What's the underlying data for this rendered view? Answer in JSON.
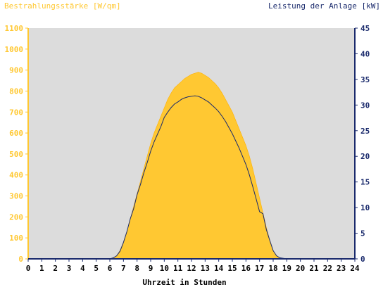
{
  "chart_data": {
    "type": "area",
    "left_axis_label": "Bestrahlungsstärke [W/qm]",
    "right_axis_label": "Leistung der Anlage [kW]",
    "xlabel": "Uhrzeit in Stunden",
    "xlim": [
      0,
      24
    ],
    "x_ticks": [
      0,
      1,
      2,
      3,
      4,
      5,
      6,
      7,
      8,
      9,
      10,
      11,
      12,
      13,
      14,
      15,
      16,
      17,
      18,
      19,
      20,
      21,
      22,
      23,
      24
    ],
    "ylim_left": [
      0,
      1100
    ],
    "y_ticks_left": [
      0,
      100,
      200,
      300,
      400,
      500,
      600,
      700,
      800,
      900,
      1000,
      1100
    ],
    "ylim_right": [
      0,
      45
    ],
    "y_ticks_right": [
      0,
      5,
      10,
      15,
      20,
      25,
      30,
      35,
      40,
      45
    ],
    "grid": false,
    "colors": {
      "irradiance": "#ffc832",
      "power": "#1a2a6c",
      "plot_background": "#dcdcdc",
      "left_axis": "#ffc832",
      "right_axis": "#1a2a6c"
    },
    "series": [
      {
        "axis": "left",
        "style": "area",
        "x": [
          0,
          6,
          6.25,
          6.5,
          6.75,
          7,
          7.25,
          7.5,
          7.75,
          8,
          8.25,
          8.5,
          8.75,
          9,
          9.25,
          9.5,
          9.75,
          10,
          10.25,
          10.5,
          10.75,
          11,
          11.25,
          11.5,
          11.75,
          12,
          12.25,
          12.5,
          12.75,
          13,
          13.25,
          13.5,
          13.75,
          14,
          14.25,
          14.5,
          14.75,
          15,
          15.25,
          15.5,
          15.75,
          16,
          16.25,
          16.5,
          16.75,
          17,
          17.25,
          17.5,
          17.75,
          18,
          18.25,
          18.5,
          18.75,
          19,
          24
        ],
        "y": [
          0,
          0,
          5,
          15,
          40,
          80,
          130,
          190,
          250,
          310,
          370,
          430,
          490,
          550,
          600,
          640,
          680,
          720,
          760,
          790,
          815,
          830,
          845,
          860,
          870,
          880,
          885,
          890,
          885,
          875,
          865,
          850,
          835,
          815,
          790,
          760,
          730,
          700,
          660,
          620,
          580,
          540,
          490,
          430,
          360,
          290,
          220,
          150,
          90,
          40,
          15,
          5,
          2,
          0,
          0
        ]
      },
      {
        "axis": "right",
        "style": "line",
        "x": [
          0,
          6,
          6.25,
          6.5,
          6.75,
          7,
          7.25,
          7.5,
          7.75,
          8,
          8.25,
          8.5,
          8.75,
          9,
          9.25,
          9.5,
          9.75,
          10,
          10.25,
          10.5,
          10.75,
          11,
          11.25,
          11.5,
          11.75,
          12,
          12.25,
          12.5,
          12.75,
          13,
          13.25,
          13.5,
          13.75,
          14,
          14.25,
          14.5,
          14.75,
          15,
          15.25,
          15.5,
          15.75,
          16,
          16.25,
          16.5,
          16.75,
          17,
          17.25,
          17.5,
          17.75,
          18,
          18.25,
          18.5,
          18.75,
          19,
          24
        ],
        "y": [
          0,
          0,
          0.2,
          0.6,
          1.5,
          3.2,
          5.3,
          7.8,
          9.8,
          12.5,
          14.5,
          16.8,
          18.8,
          21.0,
          22.8,
          24.3,
          25.8,
          27.6,
          28.6,
          29.5,
          30.2,
          30.6,
          31.1,
          31.4,
          31.6,
          31.7,
          31.8,
          31.7,
          31.4,
          31.0,
          30.6,
          30.0,
          29.4,
          28.7,
          27.8,
          26.8,
          25.6,
          24.4,
          23.0,
          21.6,
          20.0,
          18.4,
          16.4,
          14.1,
          11.7,
          9.2,
          8.8,
          5.7,
          3.6,
          1.6,
          0.6,
          0.2,
          0.1,
          0,
          0
        ]
      }
    ]
  }
}
